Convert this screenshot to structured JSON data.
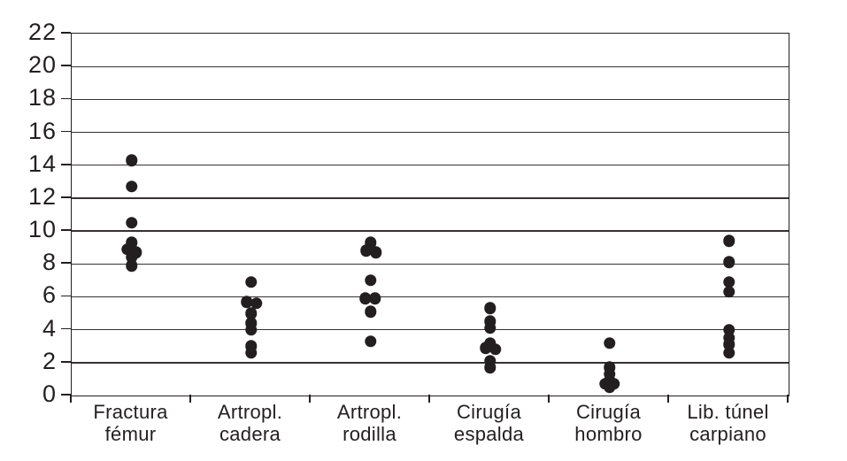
{
  "chart_data": {
    "type": "scatter",
    "title": "",
    "xlabel": "",
    "ylabel": "",
    "ylim": [
      0,
      22
    ],
    "y_ticks": [
      0,
      2,
      4,
      6,
      8,
      10,
      12,
      14,
      16,
      18,
      20,
      22
    ],
    "grid": "horizontal-on",
    "legend": "none",
    "dot_color": "#231f20",
    "line_color": "#231f20",
    "background_color": "#ffffff",
    "categories": [
      "Fractura fémur",
      "Artropl. cadera",
      "Artropl. rodilla",
      "Cirugía espalda",
      "Cirugía hombro",
      "Lib. túnel carpiano"
    ],
    "category_label_lines": [
      [
        "Fractura",
        "fémur"
      ],
      [
        "Artropl.",
        "cadera"
      ],
      [
        "Artropl.",
        "rodilla"
      ],
      [
        "Cirugía",
        "espalda"
      ],
      [
        "Cirugía",
        "hombro"
      ],
      [
        "Lib. túnel",
        "carpiano"
      ]
    ],
    "series": [
      {
        "category": "Fractura fémur",
        "values": [
          14.3,
          12.7,
          10.5,
          9.3,
          8.9,
          8.7,
          8.4,
          7.9
        ],
        "dx": [
          0,
          0,
          0,
          0,
          -5,
          5,
          0,
          0
        ]
      },
      {
        "category": "Artropl. cadera",
        "values": [
          6.9,
          5.7,
          5.6,
          5.0,
          4.4,
          4.0,
          3.0,
          2.6
        ],
        "dx": [
          0,
          -5,
          6,
          0,
          0,
          0,
          0,
          0
        ]
      },
      {
        "category": "Artropl. rodilla",
        "values": [
          9.3,
          8.8,
          8.7,
          7.0,
          5.9,
          5.9,
          5.1,
          3.3
        ],
        "dx": [
          0,
          -5,
          6,
          0,
          -6,
          5,
          0,
          0
        ]
      },
      {
        "category": "Cirugía espalda",
        "values": [
          5.3,
          4.5,
          4.1,
          3.2,
          2.9,
          2.8,
          2.1,
          1.7
        ],
        "dx": [
          0,
          0,
          0,
          0,
          -5,
          6,
          0,
          0
        ]
      },
      {
        "category": "Cirugía hombro",
        "values": [
          3.2,
          1.7,
          1.3,
          0.9,
          0.7,
          0.7,
          0.5
        ],
        "dx": [
          0,
          0,
          0,
          0,
          -5,
          5,
          0
        ]
      },
      {
        "category": "Lib. túnel carpiano",
        "values": [
          9.4,
          8.1,
          6.9,
          6.3,
          4.0,
          3.5,
          3.1,
          2.6
        ],
        "dx": [
          0,
          0,
          0,
          0,
          0,
          0,
          0,
          0
        ]
      }
    ]
  }
}
